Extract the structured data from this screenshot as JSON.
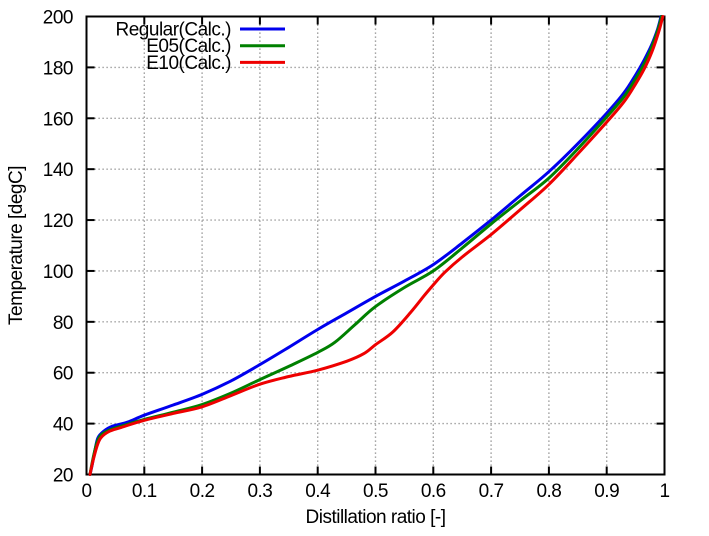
{
  "chart_data": {
    "type": "line",
    "title": "",
    "xlabel": "Distillation ratio [-]",
    "ylabel": "Temperature [degC]",
    "xlim": [
      0,
      1
    ],
    "ylim": [
      20,
      200
    ],
    "xticks": [
      0,
      0.1,
      0.2,
      0.3,
      0.4,
      0.5,
      0.6,
      0.7,
      0.8,
      0.9,
      1
    ],
    "xtick_labels": [
      "0",
      "0.1",
      "0.2",
      "0.3",
      "0.4",
      "0.5",
      "0.6",
      "0.7",
      "0.8",
      "0.9",
      "1"
    ],
    "yticks": [
      20,
      40,
      60,
      80,
      100,
      120,
      140,
      160,
      180,
      200
    ],
    "ytick_labels": [
      "20",
      "40",
      "60",
      "80",
      "100",
      "120",
      "140",
      "160",
      "180",
      "200"
    ],
    "grid": true,
    "grid_style": "dotted",
    "legend_position": "top-left-inside",
    "series": [
      {
        "name": "Regular(Calc.)",
        "color": "#0000ee",
        "points": [
          [
            0.006,
            20
          ],
          [
            0.01,
            24
          ],
          [
            0.015,
            30
          ],
          [
            0.02,
            34.5
          ],
          [
            0.03,
            37
          ],
          [
            0.045,
            39
          ],
          [
            0.07,
            40.5
          ],
          [
            0.1,
            43.3
          ],
          [
            0.15,
            47.3
          ],
          [
            0.2,
            51.5
          ],
          [
            0.25,
            56.8
          ],
          [
            0.3,
            63.2
          ],
          [
            0.35,
            70
          ],
          [
            0.4,
            77
          ],
          [
            0.45,
            83.5
          ],
          [
            0.5,
            90
          ],
          [
            0.55,
            96
          ],
          [
            0.6,
            102.5
          ],
          [
            0.65,
            111
          ],
          [
            0.7,
            120
          ],
          [
            0.75,
            129.5
          ],
          [
            0.8,
            139
          ],
          [
            0.85,
            150
          ],
          [
            0.9,
            162
          ],
          [
            0.93,
            170
          ],
          [
            0.95,
            177
          ],
          [
            0.965,
            183
          ],
          [
            0.978,
            189
          ],
          [
            0.988,
            195
          ],
          [
            0.994,
            200
          ]
        ]
      },
      {
        "name": "E05(Calc.)",
        "color": "#008000",
        "points": [
          [
            0.006,
            20
          ],
          [
            0.012,
            27
          ],
          [
            0.018,
            32.5
          ],
          [
            0.025,
            35.5
          ],
          [
            0.04,
            37.5
          ],
          [
            0.06,
            39
          ],
          [
            0.1,
            41.6
          ],
          [
            0.15,
            44.5
          ],
          [
            0.2,
            47.5
          ],
          [
            0.25,
            52
          ],
          [
            0.3,
            57.3
          ],
          [
            0.35,
            62.5
          ],
          [
            0.4,
            68
          ],
          [
            0.43,
            72
          ],
          [
            0.465,
            79
          ],
          [
            0.5,
            86
          ],
          [
            0.55,
            93.5
          ],
          [
            0.6,
            100
          ],
          [
            0.65,
            109
          ],
          [
            0.7,
            118.5
          ],
          [
            0.75,
            127.5
          ],
          [
            0.8,
            136.5
          ],
          [
            0.85,
            148
          ],
          [
            0.9,
            160.5
          ],
          [
            0.93,
            168.5
          ],
          [
            0.95,
            175.5
          ],
          [
            0.965,
            181.5
          ],
          [
            0.978,
            188
          ],
          [
            0.989,
            195
          ],
          [
            0.995,
            200
          ]
        ]
      },
      {
        "name": "E10(Calc.)",
        "color": "#ee0000",
        "points": [
          [
            0.006,
            20
          ],
          [
            0.012,
            26
          ],
          [
            0.018,
            31
          ],
          [
            0.025,
            34.5
          ],
          [
            0.04,
            37
          ],
          [
            0.06,
            38.5
          ],
          [
            0.1,
            41.3
          ],
          [
            0.15,
            44
          ],
          [
            0.2,
            46.6
          ],
          [
            0.25,
            51
          ],
          [
            0.3,
            55.5
          ],
          [
            0.35,
            58.5
          ],
          [
            0.4,
            61
          ],
          [
            0.45,
            64.5
          ],
          [
            0.48,
            67.5
          ],
          [
            0.5,
            71
          ],
          [
            0.53,
            76
          ],
          [
            0.56,
            83.5
          ],
          [
            0.585,
            90.5
          ],
          [
            0.6,
            94.5
          ],
          [
            0.62,
            99.5
          ],
          [
            0.65,
            105.5
          ],
          [
            0.7,
            114.3
          ],
          [
            0.75,
            124
          ],
          [
            0.8,
            134
          ],
          [
            0.85,
            146
          ],
          [
            0.9,
            158.5
          ],
          [
            0.93,
            166.5
          ],
          [
            0.95,
            173.5
          ],
          [
            0.965,
            179.5
          ],
          [
            0.978,
            186
          ],
          [
            0.99,
            194
          ],
          [
            0.997,
            200
          ]
        ]
      }
    ]
  },
  "style": {
    "grid_color": "#8a8a8a",
    "axis_color": "#000000",
    "background": "#ffffff"
  }
}
